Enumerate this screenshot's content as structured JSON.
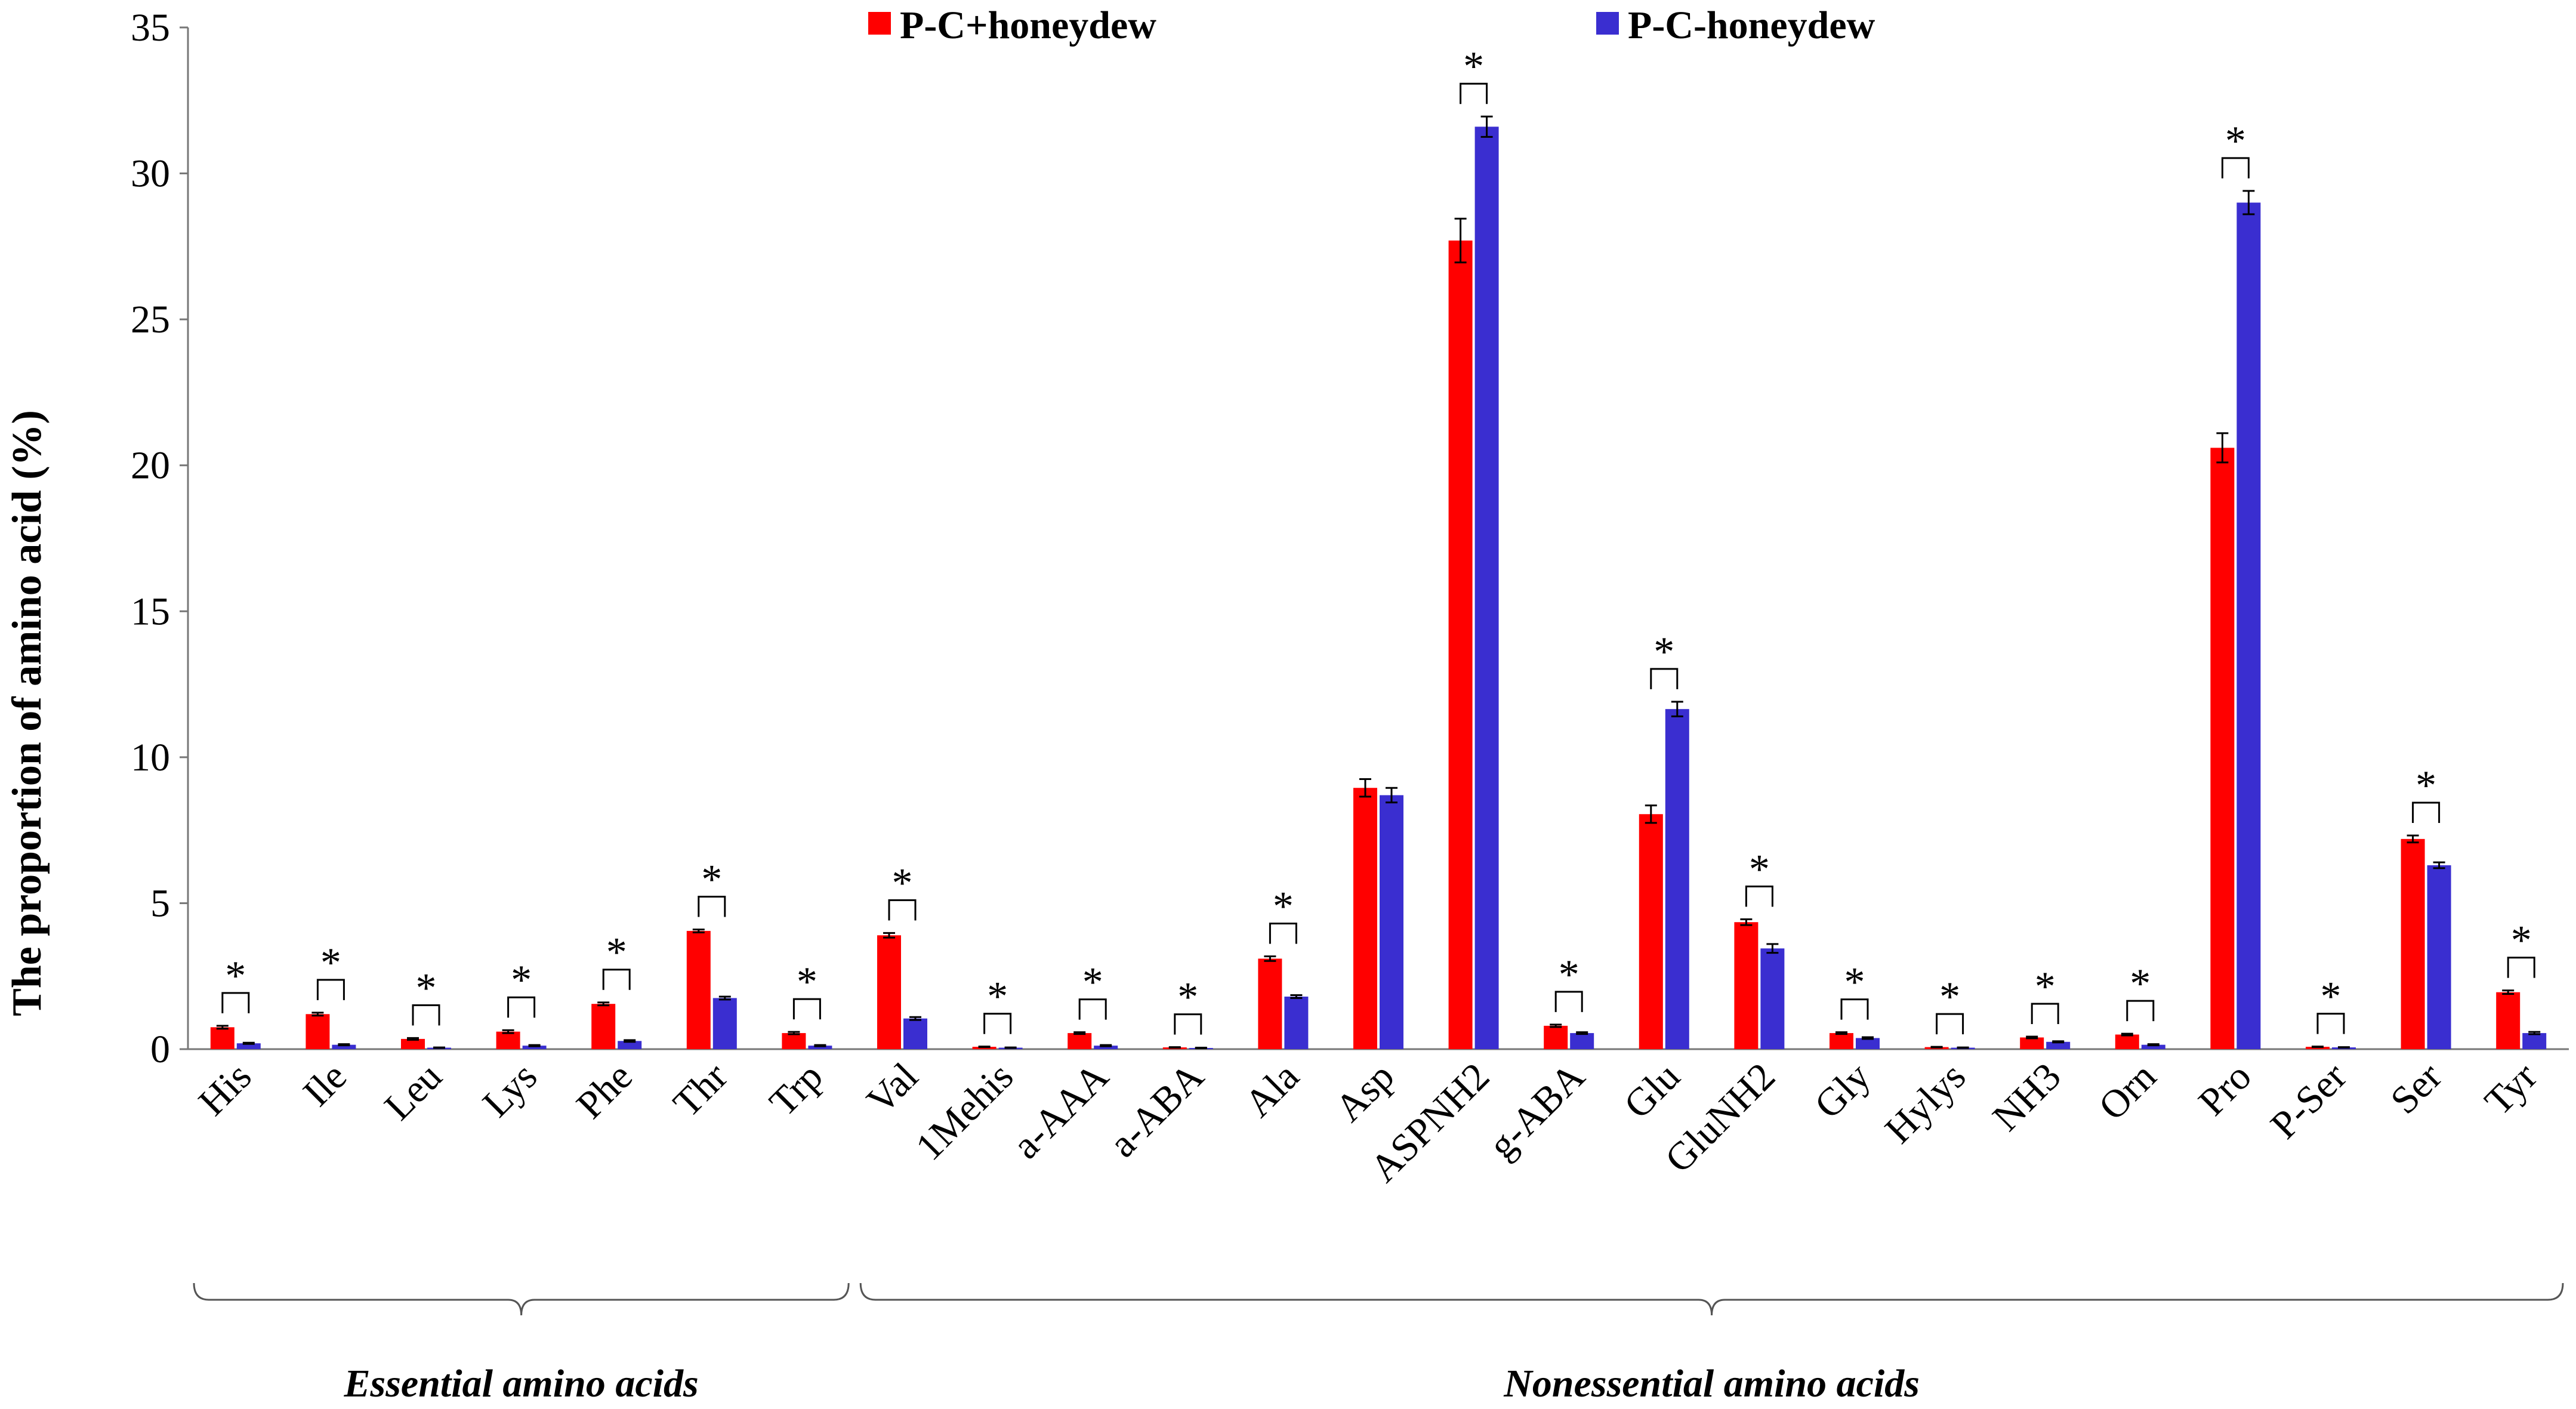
{
  "chart_data": {
    "type": "bar",
    "ylabel": "The proportion of amino acid (%)",
    "ylim": [
      0,
      35
    ],
    "yticks": [
      0,
      5,
      10,
      15,
      20,
      25,
      30,
      35
    ],
    "grid": false,
    "legend_position": "top-center",
    "categories": [
      "His",
      "Ile",
      "Leu",
      "Lys",
      "Phe",
      "Thr",
      "Trp",
      "Val",
      "1Mehis",
      "a-AAA",
      "a-ABA",
      "Ala",
      "Asp",
      "ASPNH2",
      "g-ABA",
      "Glu",
      "GluNH2",
      "Gly",
      "Hylys",
      "NH3",
      "Orn",
      "Pro",
      "P-Ser",
      "Ser",
      "Tyr"
    ],
    "series": [
      {
        "name": "P-C+honeydew",
        "color": "#ff0000",
        "values": [
          0.75,
          1.2,
          0.35,
          0.6,
          1.55,
          4.05,
          0.55,
          3.9,
          0.08,
          0.55,
          0.06,
          3.1,
          8.95,
          27.7,
          0.8,
          8.05,
          4.35,
          0.55,
          0.07,
          0.4,
          0.5,
          20.6,
          0.08,
          7.2,
          1.95
        ],
        "errors": [
          0.05,
          0.05,
          0.03,
          0.05,
          0.05,
          0.05,
          0.04,
          0.08,
          0.01,
          0.03,
          0.01,
          0.08,
          0.3,
          0.75,
          0.04,
          0.3,
          0.1,
          0.03,
          0.01,
          0.03,
          0.03,
          0.5,
          0.01,
          0.12,
          0.06
        ]
      },
      {
        "name": "P-C-honeydew",
        "color": "#3a2ed0",
        "values": [
          0.2,
          0.15,
          0.05,
          0.12,
          0.28,
          1.75,
          0.12,
          1.05,
          0.05,
          0.12,
          0.04,
          1.8,
          8.7,
          31.6,
          0.55,
          11.65,
          3.45,
          0.38,
          0.05,
          0.25,
          0.15,
          29.0,
          0.06,
          6.3,
          0.55
        ],
        "errors": [
          0.02,
          0.02,
          0.01,
          0.02,
          0.03,
          0.05,
          0.02,
          0.05,
          0.01,
          0.02,
          0.01,
          0.05,
          0.25,
          0.35,
          0.03,
          0.25,
          0.15,
          0.03,
          0.01,
          0.02,
          0.02,
          0.4,
          0.01,
          0.1,
          0.04
        ]
      }
    ],
    "significant": [
      true,
      true,
      true,
      true,
      true,
      true,
      true,
      true,
      true,
      true,
      true,
      true,
      false,
      true,
      true,
      true,
      true,
      true,
      true,
      true,
      true,
      true,
      true,
      true,
      true
    ],
    "significance_marker": "*",
    "groups": [
      {
        "label": "Essential amino acids",
        "from": "His",
        "to": "Trp"
      },
      {
        "label": "Nonessential amino acids",
        "from": "Val",
        "to": "Tyr"
      }
    ]
  }
}
